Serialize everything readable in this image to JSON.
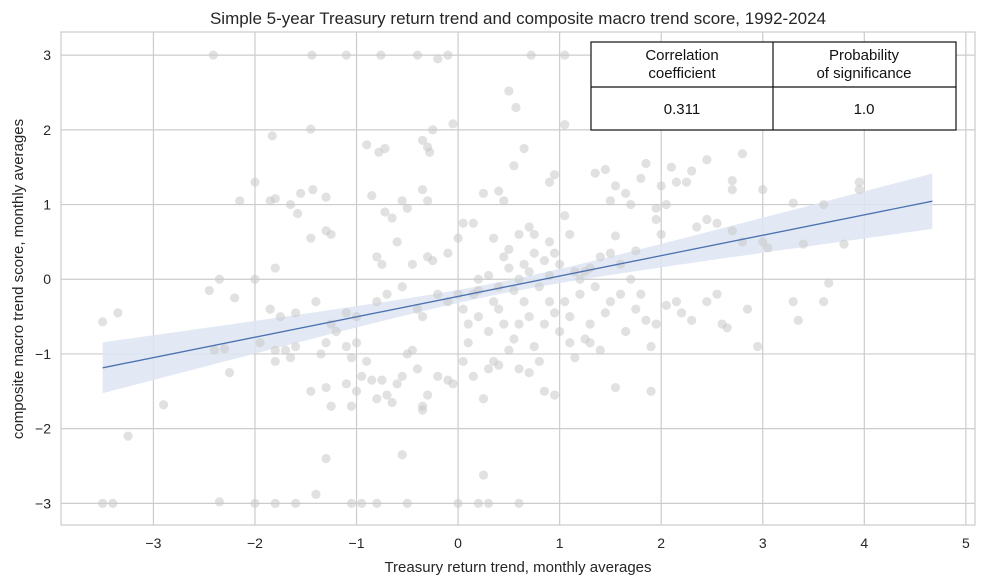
{
  "chart_data": {
    "type": "scatter",
    "title": "Simple 5-year Treasury return trend and composite macro trend score, 1992-2024",
    "xlabel": "Treasury return trend, monthly averages",
    "ylabel": "composite macro trend score, monthly averages",
    "xlim": [
      -3.91,
      5.09
    ],
    "ylim": [
      -3.29,
      3.31
    ],
    "xticks": [
      -3,
      -2,
      -1,
      0,
      1,
      2,
      3,
      4,
      5
    ],
    "xtick_labels": [
      "−3",
      "−2",
      "−1",
      "0",
      "1",
      "2",
      "3",
      "4",
      "5"
    ],
    "yticks": [
      -3,
      -2,
      -1,
      0,
      1,
      2,
      3
    ],
    "ytick_labels": [
      "−3",
      "−2",
      "−1",
      "0",
      "1",
      "2",
      "3"
    ],
    "grid": true,
    "regression": {
      "intercept": -0.23,
      "slope": 0.273,
      "x_range": [
        -3.5,
        4.67
      ],
      "ci_center_x": 0.4,
      "ci_a": 0.0064,
      "ci_b": 0.0072
    },
    "colors": {
      "points": "#c8c8c8",
      "line": "#4c72b0",
      "band": "#dde5f2",
      "grid": "#cccccc"
    },
    "stats_table": {
      "headers": [
        "Correlation\ncoefficient",
        "Probability\nof significance"
      ],
      "values": [
        "0.311",
        "1.0"
      ]
    },
    "points": [
      [
        -2.41,
        3
      ],
      [
        -1.44,
        3
      ],
      [
        -1.1,
        3
      ],
      [
        -0.76,
        3
      ],
      [
        -0.4,
        3
      ],
      [
        -0.2,
        2.95
      ],
      [
        -0.1,
        3
      ],
      [
        0.72,
        3
      ],
      [
        1.05,
        3
      ],
      [
        -1.83,
        1.92
      ],
      [
        -1.45,
        2.01
      ],
      [
        -0.9,
        1.8
      ],
      [
        -0.78,
        1.7
      ],
      [
        -0.72,
        1.75
      ],
      [
        -0.35,
        1.86
      ],
      [
        -0.25,
        2.0
      ],
      [
        -0.05,
        2.08
      ],
      [
        -0.3,
        1.77
      ],
      [
        -0.28,
        1.7
      ],
      [
        -2.0,
        1.3
      ],
      [
        -1.55,
        1.15
      ],
      [
        -1.43,
        1.2
      ],
      [
        -1.3,
        1.1
      ],
      [
        -1.58,
        0.88
      ],
      [
        -1.65,
        1.0
      ],
      [
        -2.15,
        1.05
      ],
      [
        -1.85,
        1.05
      ],
      [
        -1.8,
        1.08
      ],
      [
        -0.85,
        1.12
      ],
      [
        -0.72,
        0.9
      ],
      [
        -0.65,
        0.82
      ],
      [
        -0.55,
        1.05
      ],
      [
        -0.35,
        1.2
      ],
      [
        -0.3,
        1.05
      ],
      [
        -0.5,
        0.95
      ],
      [
        -1.3,
        0.65
      ],
      [
        -1.25,
        0.6
      ],
      [
        -1.45,
        0.55
      ],
      [
        -1.8,
        0.15
      ],
      [
        -2.0,
        0.0
      ],
      [
        -2.35,
        0.0
      ],
      [
        -2.45,
        -0.15
      ],
      [
        -2.2,
        -0.25
      ],
      [
        -1.85,
        -0.4
      ],
      [
        -1.75,
        -0.5
      ],
      [
        -1.6,
        -0.45
      ],
      [
        -1.4,
        -0.3
      ],
      [
        -1.1,
        -0.45
      ],
      [
        -1.0,
        -0.5
      ],
      [
        -0.8,
        -0.3
      ],
      [
        -0.7,
        -0.2
      ],
      [
        -0.55,
        -0.1
      ],
      [
        -0.45,
        0.2
      ],
      [
        -0.3,
        0.3
      ],
      [
        -0.25,
        0.25
      ],
      [
        -0.1,
        0.35
      ],
      [
        0.0,
        0.55
      ],
      [
        0.05,
        0.75
      ],
      [
        0.15,
        0.75
      ],
      [
        -0.6,
        0.5
      ],
      [
        -0.8,
        0.3
      ],
      [
        -0.75,
        0.2
      ],
      [
        -0.4,
        -0.4
      ],
      [
        -0.35,
        -0.5
      ],
      [
        -0.2,
        -0.2
      ],
      [
        -0.1,
        -0.3
      ],
      [
        0.0,
        -0.2
      ],
      [
        0.05,
        -0.4
      ],
      [
        0.1,
        -0.6
      ],
      [
        0.15,
        -0.2
      ],
      [
        -3.5,
        -0.57
      ],
      [
        -3.35,
        -0.45
      ],
      [
        -2.4,
        -0.95
      ],
      [
        -2.3,
        -0.93
      ],
      [
        -2.25,
        -1.25
      ],
      [
        -1.95,
        -0.85
      ],
      [
        -1.8,
        -0.95
      ],
      [
        -1.7,
        -0.95
      ],
      [
        -1.6,
        -0.9
      ],
      [
        -1.8,
        -1.1
      ],
      [
        -1.65,
        -1.05
      ],
      [
        -1.35,
        -1.0
      ],
      [
        -1.3,
        -0.85
      ],
      [
        -1.25,
        -0.6
      ],
      [
        -1.2,
        -0.7
      ],
      [
        -1.1,
        -0.9
      ],
      [
        -1.05,
        -1.05
      ],
      [
        -1.0,
        -0.85
      ],
      [
        -0.95,
        -1.3
      ],
      [
        -0.85,
        -1.35
      ],
      [
        -0.75,
        -1.35
      ],
      [
        -0.7,
        -1.55
      ],
      [
        -0.6,
        -1.4
      ],
      [
        -0.55,
        -1.3
      ],
      [
        -0.5,
        -1.0
      ],
      [
        -0.45,
        -0.95
      ],
      [
        -0.4,
        -1.2
      ],
      [
        -0.35,
        -1.7
      ],
      [
        -0.3,
        -1.55
      ],
      [
        -0.2,
        -1.3
      ],
      [
        -0.1,
        -1.35
      ],
      [
        -0.05,
        -1.4
      ],
      [
        0.05,
        -1.1
      ],
      [
        0.1,
        -0.85
      ],
      [
        -0.55,
        -2.35
      ],
      [
        -1.25,
        -1.7
      ],
      [
        -1.3,
        -1.45
      ],
      [
        -1.45,
        -1.5
      ],
      [
        -1.1,
        -1.4
      ],
      [
        -1.05,
        -1.7
      ],
      [
        -1.0,
        -1.5
      ],
      [
        -0.9,
        -1.1
      ],
      [
        -0.8,
        -1.6
      ],
      [
        -0.65,
        -1.65
      ],
      [
        -0.35,
        -1.75
      ],
      [
        -2.9,
        -1.68
      ],
      [
        -3.25,
        -2.1
      ],
      [
        -1.3,
        -2.4
      ],
      [
        -1.4,
        -2.88
      ],
      [
        0.25,
        -2.62
      ],
      [
        -3.5,
        -3
      ],
      [
        -3.4,
        -3
      ],
      [
        -2.35,
        -2.98
      ],
      [
        -2.0,
        -3
      ],
      [
        -1.8,
        -3
      ],
      [
        -1.6,
        -3
      ],
      [
        -1.05,
        -3
      ],
      [
        -0.95,
        -3
      ],
      [
        -0.8,
        -3
      ],
      [
        -0.5,
        -3
      ],
      [
        0.0,
        -3
      ],
      [
        0.2,
        -3
      ],
      [
        0.3,
        -3
      ],
      [
        0.6,
        -3
      ],
      [
        0.5,
        2.52
      ],
      [
        0.57,
        2.3
      ],
      [
        0.65,
        1.75
      ],
      [
        1.05,
        2.07
      ],
      [
        0.95,
        1.4
      ],
      [
        0.9,
        1.3
      ],
      [
        0.55,
        1.52
      ],
      [
        0.4,
        1.18
      ],
      [
        0.45,
        1.05
      ],
      [
        0.25,
        1.15
      ],
      [
        0.35,
        0.55
      ],
      [
        0.5,
        0.4
      ],
      [
        0.6,
        0.6
      ],
      [
        0.7,
        0.7
      ],
      [
        0.75,
        0.6
      ],
      [
        0.9,
        0.5
      ],
      [
        1.05,
        0.85
      ],
      [
        1.1,
        0.6
      ],
      [
        1.35,
        1.42
      ],
      [
        1.45,
        1.47
      ],
      [
        1.55,
        1.25
      ],
      [
        1.65,
        1.15
      ],
      [
        1.8,
        1.35
      ],
      [
        1.5,
        1.05
      ],
      [
        1.7,
        1.0
      ],
      [
        1.85,
        1.55
      ],
      [
        2.0,
        1.25
      ],
      [
        2.1,
        1.5
      ],
      [
        2.15,
        1.3
      ],
      [
        2.3,
        1.45
      ],
      [
        2.45,
        1.6
      ],
      [
        2.25,
        1.3
      ],
      [
        2.7,
        1.32
      ],
      [
        2.8,
        1.68
      ],
      [
        2.7,
        1.2
      ],
      [
        3.0,
        1.2
      ],
      [
        1.95,
        0.95
      ],
      [
        2.05,
        1.0
      ],
      [
        1.95,
        0.8
      ],
      [
        2.35,
        0.7
      ],
      [
        2.45,
        0.8
      ],
      [
        2.55,
        0.75
      ],
      [
        2.7,
        0.65
      ],
      [
        2.8,
        0.5
      ],
      [
        3.0,
        0.5
      ],
      [
        3.05,
        0.42
      ],
      [
        3.3,
        1.02
      ],
      [
        3.6,
        1.0
      ],
      [
        3.95,
        1.3
      ],
      [
        3.95,
        1.2
      ],
      [
        3.4,
        0.47
      ],
      [
        3.8,
        0.47
      ],
      [
        2.0,
        0.6
      ],
      [
        1.55,
        0.58
      ],
      [
        1.5,
        0.35
      ],
      [
        1.6,
        0.2
      ],
      [
        1.75,
        0.38
      ],
      [
        1.4,
        0.3
      ],
      [
        1.3,
        0.15
      ],
      [
        0.2,
        0.0
      ],
      [
        0.3,
        0.05
      ],
      [
        0.4,
        -0.1
      ],
      [
        0.5,
        0.15
      ],
      [
        0.55,
        -0.15
      ],
      [
        0.6,
        0.0
      ],
      [
        0.7,
        0.1
      ],
      [
        0.8,
        -0.1
      ],
      [
        0.9,
        0.05
      ],
      [
        1.0,
        0.2
      ],
      [
        1.05,
        -0.3
      ],
      [
        1.1,
        -0.5
      ],
      [
        1.2,
        -0.2
      ],
      [
        1.25,
        0.1
      ],
      [
        1.35,
        -0.1
      ],
      [
        1.45,
        -0.45
      ],
      [
        1.5,
        -0.3
      ],
      [
        1.6,
        -0.2
      ],
      [
        1.7,
        0.0
      ],
      [
        1.8,
        -0.2
      ],
      [
        1.85,
        -0.55
      ],
      [
        1.95,
        -0.6
      ],
      [
        2.05,
        -0.35
      ],
      [
        0.2,
        -0.5
      ],
      [
        0.3,
        -0.7
      ],
      [
        0.4,
        -0.4
      ],
      [
        0.45,
        -0.6
      ],
      [
        0.55,
        -0.8
      ],
      [
        0.65,
        -0.3
      ],
      [
        0.7,
        -0.5
      ],
      [
        0.75,
        -0.9
      ],
      [
        0.85,
        -0.6
      ],
      [
        0.9,
        -0.3
      ],
      [
        0.95,
        -0.45
      ],
      [
        1.0,
        -0.7
      ],
      [
        1.1,
        -0.85
      ],
      [
        1.15,
        -1.05
      ],
      [
        1.25,
        -0.8
      ],
      [
        1.3,
        -0.6
      ],
      [
        1.4,
        -0.95
      ],
      [
        1.55,
        -1.45
      ],
      [
        1.9,
        -1.5
      ],
      [
        0.35,
        -1.1
      ],
      [
        0.4,
        -1.15
      ],
      [
        0.5,
        -0.95
      ],
      [
        0.6,
        -1.2
      ],
      [
        0.7,
        -1.25
      ],
      [
        0.8,
        -1.1
      ],
      [
        0.85,
        -1.5
      ],
      [
        0.95,
        -1.55
      ],
      [
        0.25,
        -1.6
      ],
      [
        0.15,
        -1.3
      ],
      [
        0.3,
        -1.2
      ],
      [
        0.6,
        -0.6
      ],
      [
        0.2,
        -0.15
      ],
      [
        0.35,
        -0.3
      ],
      [
        0.45,
        0.3
      ],
      [
        0.65,
        0.2
      ],
      [
        0.75,
        0.35
      ],
      [
        0.85,
        0.25
      ],
      [
        0.95,
        0.35
      ],
      [
        1.15,
        0.1
      ],
      [
        1.2,
        0.0
      ],
      [
        2.3,
        -0.55
      ],
      [
        2.55,
        -0.2
      ],
      [
        2.6,
        -0.6
      ],
      [
        2.65,
        -0.65
      ],
      [
        2.85,
        -0.4
      ],
      [
        2.95,
        -0.9
      ],
      [
        3.3,
        -0.3
      ],
      [
        3.35,
        -0.55
      ],
      [
        3.6,
        -0.3
      ],
      [
        3.65,
        -0.05
      ],
      [
        2.15,
        -0.3
      ],
      [
        2.2,
        -0.45
      ],
      [
        2.45,
        -0.3
      ],
      [
        1.75,
        -0.4
      ],
      [
        1.9,
        -0.9
      ],
      [
        1.3,
        -0.85
      ],
      [
        1.65,
        -0.7
      ]
    ]
  }
}
